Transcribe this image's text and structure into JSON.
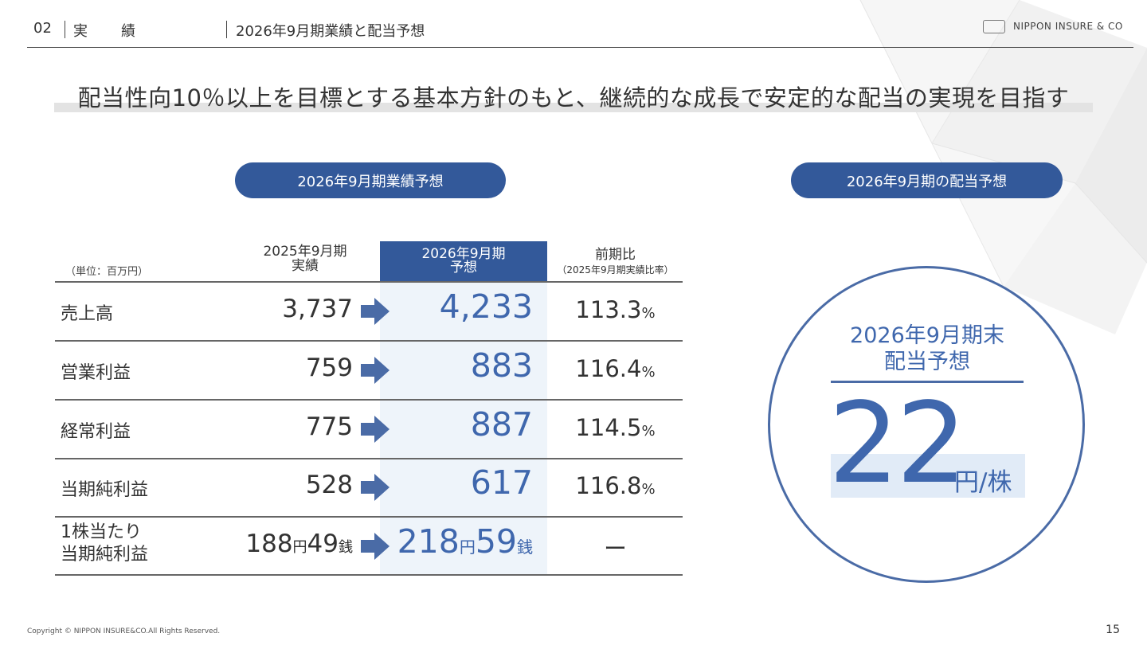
{
  "header": {
    "section_number": "02",
    "section_name": "実　績",
    "title": "2026年9月期業績と配当予想",
    "logo_text": "NIPPON INSURE & CO"
  },
  "headline": "配当性向10％以上を目標とする基本方針のもと、継続的な成長で安定的な配当の実現を目指す",
  "left_panel": {
    "pill": "2026年9月期業績予想",
    "unit": "（単位：百万円）",
    "col_prev": {
      "line1": "2025年9月期",
      "line2": "実績"
    },
    "col_forecast": {
      "line1": "2026年9月期",
      "line2": "予想"
    },
    "col_ratio": {
      "line1": "前期比",
      "line2": "（2025年9月期実績比率）"
    },
    "rows": [
      {
        "label": "売上高",
        "prev": "3,737",
        "forecast": "4,233",
        "ratio": "113.3",
        "pct": "%"
      },
      {
        "label": "営業利益",
        "prev": "759",
        "forecast": "883",
        "ratio": "116.4",
        "pct": "%"
      },
      {
        "label": "経常利益",
        "prev": "775",
        "forecast": "887",
        "ratio": "114.5",
        "pct": "%"
      },
      {
        "label": "当期純利益",
        "prev": "528",
        "forecast": "617",
        "ratio": "116.8",
        "pct": "%"
      }
    ],
    "eps_row": {
      "label_line1": "1株当たり",
      "label_line2": "当期純利益",
      "prev_yen": "188",
      "prev_sen": "49",
      "forecast_yen": "218",
      "forecast_sen": "59",
      "yen_unit": "円",
      "sen_unit": "銭",
      "ratio": "ー"
    }
  },
  "right_panel": {
    "pill": "2026年9月期の配当予想",
    "circle_line1": "2026年9月期末",
    "circle_line2": "配当予想",
    "dividend": "22",
    "dividend_unit": "円/株"
  },
  "footer": {
    "copyright": "Copyright © NIPPON INSURE&CO.All Rights Reserved.",
    "page": "15"
  },
  "colors": {
    "accent": "#33599a",
    "value_blue": "#3f67ad",
    "highlight": "#eef4fa"
  }
}
